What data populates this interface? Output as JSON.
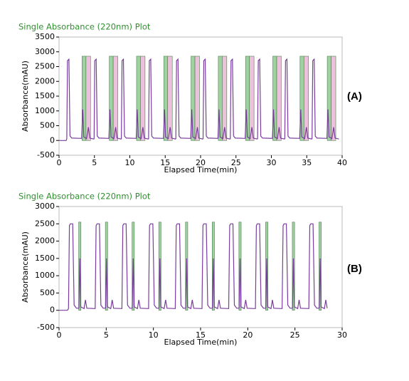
{
  "chart_data": [
    {
      "type": "line",
      "title": "Single Absorbance (220nm) Plot",
      "xlabel": "Elapsed Time(min)",
      "ylabel": "Absorbance(mAU)",
      "panel_label": "(A)",
      "xlim": [
        0,
        40
      ],
      "ylim": [
        -500,
        3500
      ],
      "xticks": [
        0,
        5,
        10,
        15,
        20,
        25,
        30,
        35,
        40
      ],
      "yticks": [
        -500,
        0,
        500,
        1000,
        1500,
        2000,
        2500,
        3000,
        3500
      ],
      "bands": [
        {
          "color": "#8fc98f",
          "height": 2850,
          "starts": [
            3.25,
            7.1,
            10.95,
            14.8,
            18.65,
            22.5,
            26.35,
            30.2,
            34.05,
            37.9
          ],
          "ends": [
            3.8,
            7.65,
            11.5,
            15.35,
            19.2,
            23.05,
            26.9,
            30.75,
            34.6,
            38.45
          ]
        },
        {
          "color": "#e7b6d6",
          "height": 2850,
          "starts": [
            3.8,
            7.65,
            11.5,
            15.35,
            19.2,
            23.05,
            26.9,
            30.75,
            34.6,
            38.45
          ],
          "ends": [
            4.45,
            8.3,
            12.15,
            16.0,
            19.85,
            23.7,
            27.55,
            31.4,
            35.25,
            39.1
          ]
        }
      ],
      "series": [
        {
          "color": "#7a3d9e",
          "x": [
            0,
            1.0,
            1.1,
            1.2,
            1.4,
            1.55,
            1.8,
            3.2,
            3.35,
            3.5,
            3.9,
            4.15,
            4.35,
            4.9,
            4.95,
            5.05,
            5.25,
            5.4,
            5.65,
            7.05,
            7.2,
            7.35,
            7.75,
            8.0,
            8.2,
            8.75,
            8.8,
            8.9,
            9.1,
            9.25,
            9.5,
            10.9,
            11.05,
            11.2,
            11.6,
            11.85,
            12.05,
            12.6,
            12.65,
            12.75,
            12.95,
            13.1,
            13.35,
            14.75,
            14.9,
            15.05,
            15.45,
            15.7,
            15.9,
            16.45,
            16.5,
            16.6,
            16.8,
            16.95,
            17.2,
            18.6,
            18.75,
            18.9,
            19.3,
            19.55,
            19.75,
            20.3,
            20.35,
            20.45,
            20.65,
            20.8,
            21.05,
            22.45,
            22.6,
            22.75,
            23.15,
            23.4,
            23.6,
            24.15,
            24.2,
            24.3,
            24.5,
            24.65,
            24.9,
            26.3,
            26.45,
            26.6,
            27.0,
            27.25,
            27.45,
            28.0,
            28.05,
            28.15,
            28.35,
            28.5,
            28.75,
            30.15,
            30.3,
            30.45,
            30.85,
            31.1,
            31.3,
            31.85,
            31.9,
            32.0,
            32.2,
            32.35,
            32.6,
            34.0,
            34.15,
            34.3,
            34.7,
            34.95,
            35.15,
            35.7,
            35.75,
            35.85,
            36.05,
            36.2,
            36.45,
            37.85,
            38.0,
            38.15,
            38.55,
            38.8,
            39.0,
            39.55
          ],
          "values": [
            0,
            0,
            60,
            2700,
            2750,
            150,
            80,
            70,
            1050,
            120,
            60,
            450,
            80,
            50,
            60,
            2700,
            2750,
            150,
            80,
            70,
            1050,
            120,
            60,
            450,
            80,
            50,
            60,
            2700,
            2750,
            150,
            80,
            70,
            1050,
            120,
            60,
            450,
            80,
            50,
            60,
            2700,
            2750,
            150,
            80,
            70,
            1050,
            120,
            60,
            450,
            80,
            50,
            60,
            2700,
            2750,
            150,
            80,
            70,
            1050,
            120,
            60,
            450,
            80,
            50,
            60,
            2700,
            2750,
            150,
            80,
            70,
            1050,
            120,
            60,
            450,
            80,
            50,
            60,
            2700,
            2750,
            150,
            80,
            70,
            1050,
            120,
            60,
            450,
            80,
            50,
            60,
            2700,
            2750,
            150,
            80,
            70,
            1050,
            120,
            60,
            450,
            80,
            50,
            60,
            2700,
            2750,
            150,
            80,
            70,
            1050,
            120,
            60,
            450,
            80,
            50,
            60,
            2700,
            2750,
            150,
            80,
            70,
            1050,
            120,
            60,
            450,
            80,
            50
          ]
        }
      ]
    },
    {
      "type": "line",
      "title": "Single Absorbance (220nm) Plot",
      "xlabel": "Elapsed Time(min)",
      "ylabel": "Absorbance(mAU)",
      "panel_label": "(B)",
      "xlim": [
        0,
        30
      ],
      "ylim": [
        -500,
        3000
      ],
      "xticks": [
        0,
        5,
        10,
        15,
        20,
        25,
        30
      ],
      "yticks": [
        -500,
        0,
        500,
        1000,
        1500,
        2000,
        2500,
        3000
      ],
      "bands": [
        {
          "color": "#8fc98f",
          "height": 2550,
          "starts": [
            2.08,
            4.91,
            7.74,
            10.57,
            13.4,
            16.23,
            19.06,
            21.89,
            24.72,
            27.55
          ],
          "ends": [
            2.32,
            5.15,
            7.98,
            10.81,
            13.64,
            16.47,
            19.3,
            22.13,
            24.96,
            27.79
          ]
        }
      ],
      "series": [
        {
          "color": "#7a3d9e",
          "x": [
            0,
            0.9,
            1.0,
            1.1,
            1.2,
            1.45,
            1.6,
            1.85,
            2.1,
            2.2,
            2.3,
            2.65,
            2.8,
            2.95,
            3.83,
            3.93,
            4.03,
            4.28,
            4.43,
            4.68,
            4.93,
            5.03,
            5.13,
            5.48,
            5.63,
            5.78,
            6.66,
            6.76,
            6.86,
            7.11,
            7.26,
            7.51,
            7.76,
            7.86,
            7.96,
            8.31,
            8.46,
            8.61,
            9.49,
            9.59,
            9.69,
            9.94,
            10.09,
            10.34,
            10.59,
            10.69,
            10.79,
            11.14,
            11.29,
            11.44,
            12.32,
            12.42,
            12.52,
            12.77,
            12.92,
            13.17,
            13.42,
            13.52,
            13.62,
            13.97,
            14.12,
            14.27,
            15.15,
            15.25,
            15.35,
            15.6,
            15.75,
            16.0,
            16.25,
            16.35,
            16.45,
            16.8,
            16.95,
            17.1,
            17.98,
            18.08,
            18.18,
            18.43,
            18.58,
            18.83,
            19.08,
            19.18,
            19.28,
            19.63,
            19.78,
            19.93,
            20.81,
            20.91,
            21.01,
            21.26,
            21.41,
            21.66,
            21.91,
            22.01,
            22.11,
            22.46,
            22.61,
            22.76,
            23.64,
            23.74,
            23.84,
            24.09,
            24.24,
            24.49,
            24.74,
            24.84,
            24.94,
            25.29,
            25.44,
            25.59,
            26.47,
            26.57,
            26.67,
            26.92,
            27.07,
            27.32,
            27.57,
            27.67,
            27.77,
            28.12,
            28.27,
            28.42
          ],
          "values": [
            0,
            0,
            50,
            2450,
            2500,
            2500,
            150,
            60,
            60,
            1500,
            100,
            50,
            300,
            60,
            50,
            2450,
            2500,
            2500,
            150,
            60,
            60,
            1500,
            100,
            50,
            300,
            60,
            50,
            2450,
            2500,
            2500,
            150,
            60,
            60,
            1500,
            100,
            50,
            300,
            60,
            50,
            2450,
            2500,
            2500,
            150,
            60,
            60,
            1500,
            100,
            50,
            300,
            60,
            50,
            2450,
            2500,
            2500,
            150,
            60,
            60,
            1500,
            100,
            50,
            300,
            60,
            50,
            2450,
            2500,
            2500,
            150,
            60,
            60,
            1500,
            100,
            50,
            300,
            60,
            50,
            2450,
            2500,
            2500,
            150,
            60,
            60,
            1500,
            100,
            50,
            300,
            60,
            50,
            2450,
            2500,
            2500,
            150,
            60,
            60,
            1500,
            100,
            50,
            300,
            60,
            50,
            2450,
            2500,
            2500,
            150,
            60,
            60,
            1500,
            100,
            50,
            300,
            60,
            50,
            2450,
            2500,
            2500,
            150,
            60,
            60,
            1500,
            100,
            50,
            300,
            60
          ]
        }
      ]
    }
  ]
}
